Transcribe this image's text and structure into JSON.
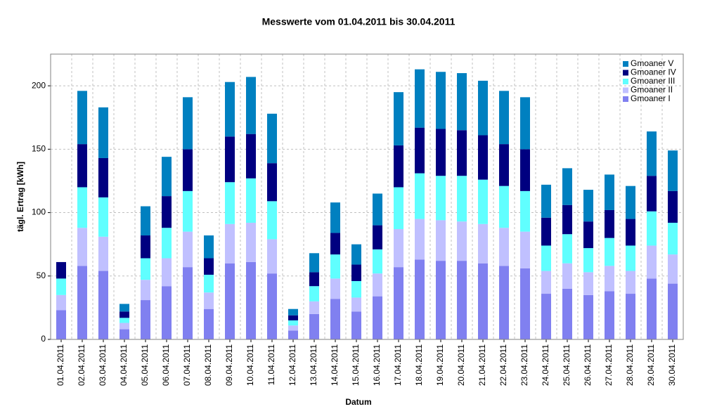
{
  "chart_data": {
    "type": "stacked-bar",
    "title": "Messwerte vom 01.04.2011 bis 30.04.2011",
    "x_label": "Datum",
    "y_label": "tägl. Ertrag [kWh]",
    "categories": [
      "01.04.2011",
      "02.04.2011",
      "03.04.2011",
      "04.04.2011",
      "05.04.2011",
      "06.04.2011",
      "07.04.2011",
      "08.04.2011",
      "09.04.2011",
      "10.04.2011",
      "11.04.2011",
      "12.04.2011",
      "13.04.2011",
      "14.04.2011",
      "15.04.2011",
      "16.04.2011",
      "17.04.2011",
      "18.04.2011",
      "19.04.2011",
      "20.04.2011",
      "21.04.2011",
      "22.04.2011",
      "23.04.2011",
      "24.04.2011",
      "25.04.2011",
      "26.04.2011",
      "27.04.2011",
      "28.04.2011",
      "29.04.2011",
      "30.04.2011"
    ],
    "series": [
      {
        "name": "Gmoaner I",
        "color": "#8080f0",
        "values": [
          23,
          58,
          54,
          8,
          31,
          42,
          57,
          24,
          60,
          61,
          52,
          7,
          20,
          32,
          22,
          34,
          57,
          63,
          62,
          62,
          60,
          58,
          56,
          36,
          40,
          35,
          38,
          36,
          48,
          44
        ]
      },
      {
        "name": "Gmoaner II",
        "color": "#c0c0ff",
        "values": [
          12,
          30,
          27,
          5,
          16,
          22,
          28,
          13,
          31,
          31,
          27,
          4,
          10,
          16,
          11,
          18,
          30,
          32,
          32,
          31,
          31,
          30,
          29,
          18,
          20,
          18,
          20,
          18,
          26,
          23
        ]
      },
      {
        "name": "Gmoaner III",
        "color": "#60ffff",
        "values": [
          13,
          32,
          31,
          4,
          17,
          24,
          32,
          14,
          33,
          35,
          30,
          4,
          12,
          19,
          13,
          19,
          33,
          36,
          35,
          36,
          35,
          33,
          32,
          20,
          23,
          19,
          22,
          20,
          27,
          25
        ]
      },
      {
        "name": "Gmoaner IV",
        "color": "#000080",
        "values": [
          13,
          34,
          31,
          5,
          18,
          25,
          33,
          13,
          36,
          35,
          30,
          4,
          11,
          17,
          13,
          19,
          33,
          36,
          37,
          36,
          35,
          33,
          33,
          22,
          23,
          21,
          22,
          21,
          28,
          25
        ]
      },
      {
        "name": "Gmoaner V",
        "color": "#0080c0",
        "values": [
          0,
          42,
          40,
          6,
          23,
          31,
          41,
          18,
          43,
          45,
          39,
          5,
          15,
          24,
          16,
          25,
          42,
          46,
          45,
          45,
          43,
          42,
          41,
          26,
          29,
          25,
          28,
          26,
          35,
          32
        ]
      }
    ],
    "ylim": [
      0,
      225
    ],
    "yticks": [
      0,
      50,
      100,
      150,
      200
    ],
    "grid": true,
    "legend": "top-right"
  }
}
